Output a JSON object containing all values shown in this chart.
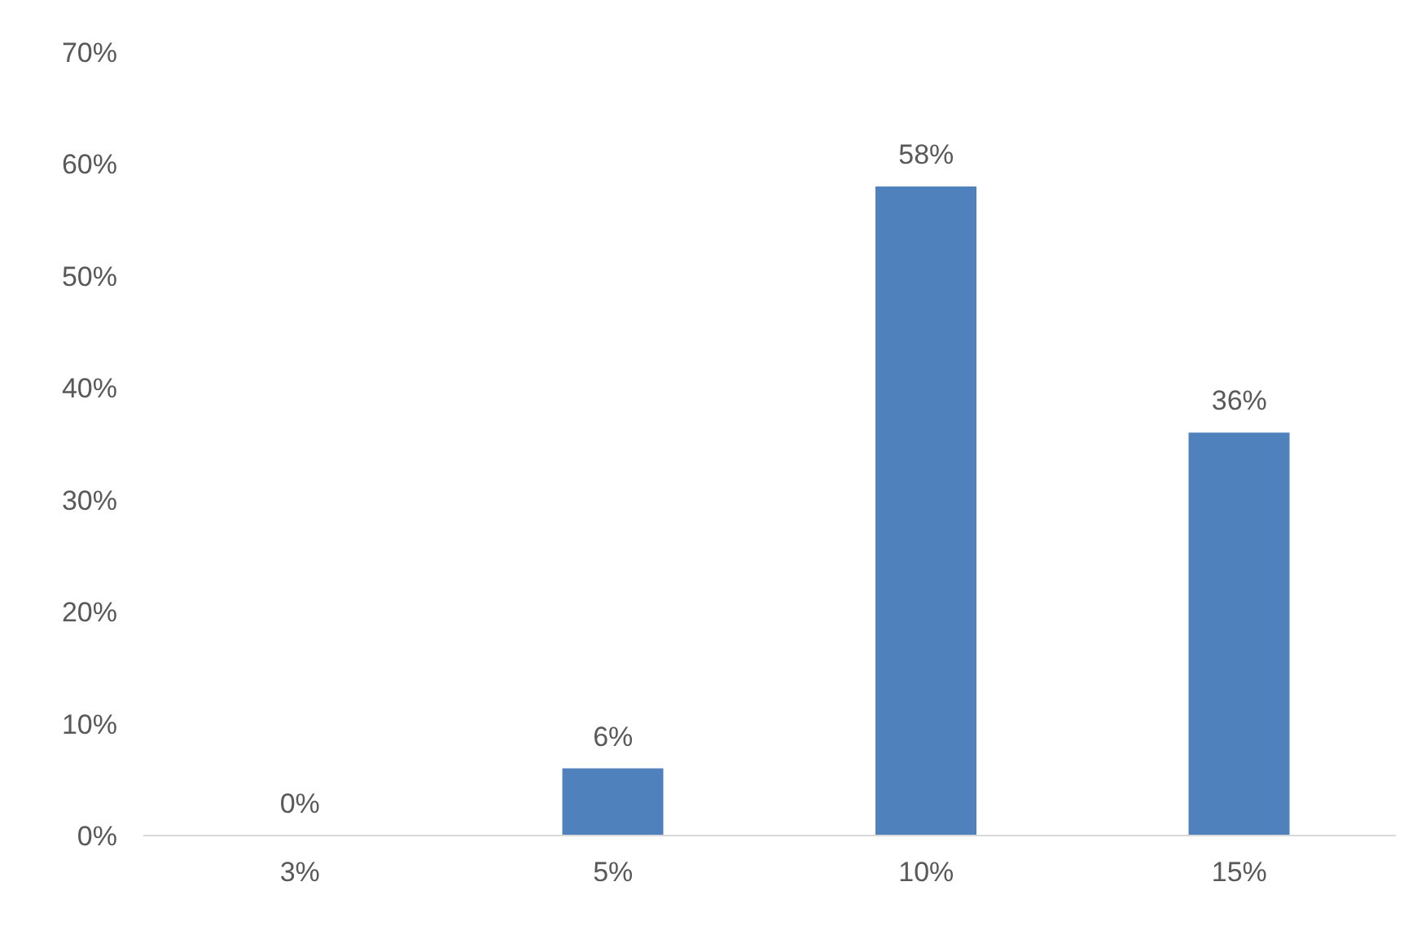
{
  "chart_data": {
    "type": "bar",
    "categories": [
      "3%",
      "5%",
      "10%",
      "15%"
    ],
    "values": [
      0,
      6,
      58,
      36
    ],
    "color": "#4f81bd",
    "value_labels": [
      "0%",
      "6%",
      "58%",
      "36%"
    ],
    "ylim": [
      0,
      70
    ],
    "yticks": [
      {
        "value": 0,
        "label": "0%"
      },
      {
        "value": 10,
        "label": "10%"
      },
      {
        "value": 20,
        "label": "20%"
      },
      {
        "value": 30,
        "label": "30%"
      },
      {
        "value": 40,
        "label": "40%"
      },
      {
        "value": 50,
        "label": "50%"
      },
      {
        "value": 60,
        "label": "60%"
      },
      {
        "value": 70,
        "label": "70%"
      }
    ],
    "grid": false,
    "legend": false
  }
}
